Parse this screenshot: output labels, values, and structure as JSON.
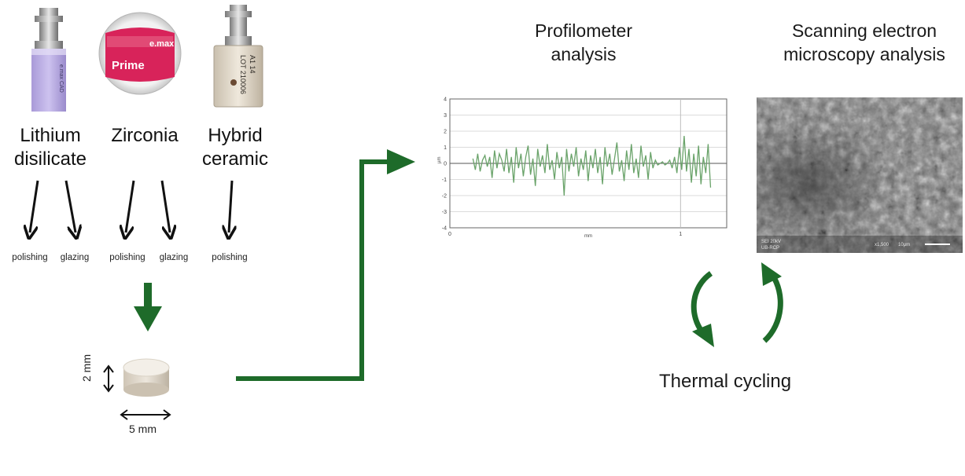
{
  "materials": [
    {
      "label_line1": "Lithium",
      "label_line2": "disilicate",
      "product_text": "e.max CAD"
    },
    {
      "label_line1": "Zirconia",
      "label_line2": "",
      "product_text": "e.max",
      "product_sub": "Prime"
    },
    {
      "label_line1": "Hybrid",
      "label_line2": "ceramic",
      "product_text": "LOT 210006",
      "product_sub": "A1 14"
    }
  ],
  "treatments": [
    "polishing",
    "glazing",
    "polishing",
    "glazing",
    "polishing"
  ],
  "specimen": {
    "height_label": "2 mm",
    "diameter_label": "5 mm"
  },
  "profilometer": {
    "title_line1": "Profilometer",
    "title_line2": "analysis",
    "chart_data": {
      "type": "line",
      "xlabel": "mm",
      "ylabel": "µm",
      "xlim": [
        0,
        1.2
      ],
      "ylim": [
        -4,
        4
      ],
      "x_ticks": [
        "0",
        "1"
      ],
      "y_ticks": [
        "4",
        "3",
        "2",
        "1",
        "0",
        "-1",
        "-2",
        "-3",
        "-4"
      ],
      "grid": true,
      "series": [
        {
          "values": [
            0.3,
            -0.4,
            0.6,
            -0.5,
            0.2,
            0.5,
            -0.2,
            0.4,
            -0.9,
            0.8,
            -0.3,
            0.6,
            0.2,
            -0.5,
            0.9,
            -0.6,
            0.4,
            -1.2,
            1.0,
            -0.3,
            0.6,
            -0.8,
            0.4,
            1.1,
            -0.7,
            0.3,
            -1.4,
            0.9,
            -0.2,
            0.5,
            -0.6,
            1.2,
            -0.4,
            0.2,
            -1.0,
            0.7,
            -0.3,
            0.4,
            -2.0,
            0.9,
            -0.5,
            0.6,
            -0.2,
            1.0,
            -0.8,
            0.3,
            -0.4,
            0.8,
            -1.1,
            0.5,
            -0.3,
            0.9,
            -0.6,
            0.4,
            -1.3,
            1.0,
            -0.2,
            0.6,
            -0.7,
            0.3,
            1.3,
            -0.5,
            0.2,
            -1.1,
            0.8,
            -0.4,
            1.2,
            -0.6,
            0.3,
            -0.9,
            1.1,
            -0.2,
            0.5,
            -1.0,
            0.7,
            -0.3,
            0.2,
            -0.1,
            0.0,
            0.1,
            -0.1,
            0.0,
            0.2,
            -0.3,
            0.4,
            -0.6,
            1.0,
            -0.4,
            1.7,
            -0.5,
            0.9,
            -1.2,
            0.6,
            -0.8,
            1.1,
            -1.3,
            0.4,
            -0.6,
            1.2,
            -1.5
          ]
        }
      ]
    }
  },
  "sem": {
    "title_line1": "Scanning electron",
    "title_line2": "microscopy analysis",
    "info_left": "SEI 20kV",
    "info_left2": "UB-RCP",
    "info_mag": "x1,500",
    "info_scale": "10μm"
  },
  "thermal": {
    "label": "Thermal cycling"
  },
  "colors": {
    "green": "#1e6b2a",
    "lightgreen": "#6aa36a",
    "grid": "#cfcfcf"
  }
}
